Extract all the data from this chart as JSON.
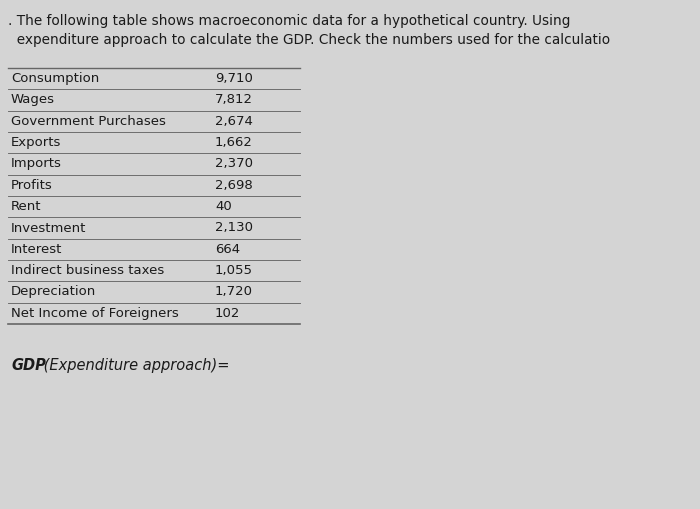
{
  "header_line1": ". The following table shows macroeconomic data for a hypothetical country. Using",
  "header_line2": "  expenditure approach to calculate the GDP. Check the numbers used for the calculatio",
  "rows": [
    [
      "Consumption",
      "9,710"
    ],
    [
      "Wages",
      "7,812"
    ],
    [
      "Government Purchases",
      "2,674"
    ],
    [
      "Exports",
      "1,662"
    ],
    [
      "Imports",
      "2,370"
    ],
    [
      "Profits",
      "2,698"
    ],
    [
      "Rent",
      "40"
    ],
    [
      "Investment",
      "2,130"
    ],
    [
      "Interest",
      "664"
    ],
    [
      "Indirect business taxes",
      "1,055"
    ],
    [
      "Depreciation",
      "1,720"
    ],
    [
      "Net Income of Foreigners",
      "102"
    ]
  ],
  "footer_text_bold": "GDP",
  "footer_text_italic": " (Expenditure approach)=",
  "bg_color": "#d4d4d4",
  "text_color": "#1a1a1a",
  "line_color": "#666666",
  "font_size_header": 9.8,
  "font_size_table": 9.5,
  "font_size_footer": 10.5,
  "fig_width": 7.0,
  "fig_height": 5.09,
  "dpi": 100
}
